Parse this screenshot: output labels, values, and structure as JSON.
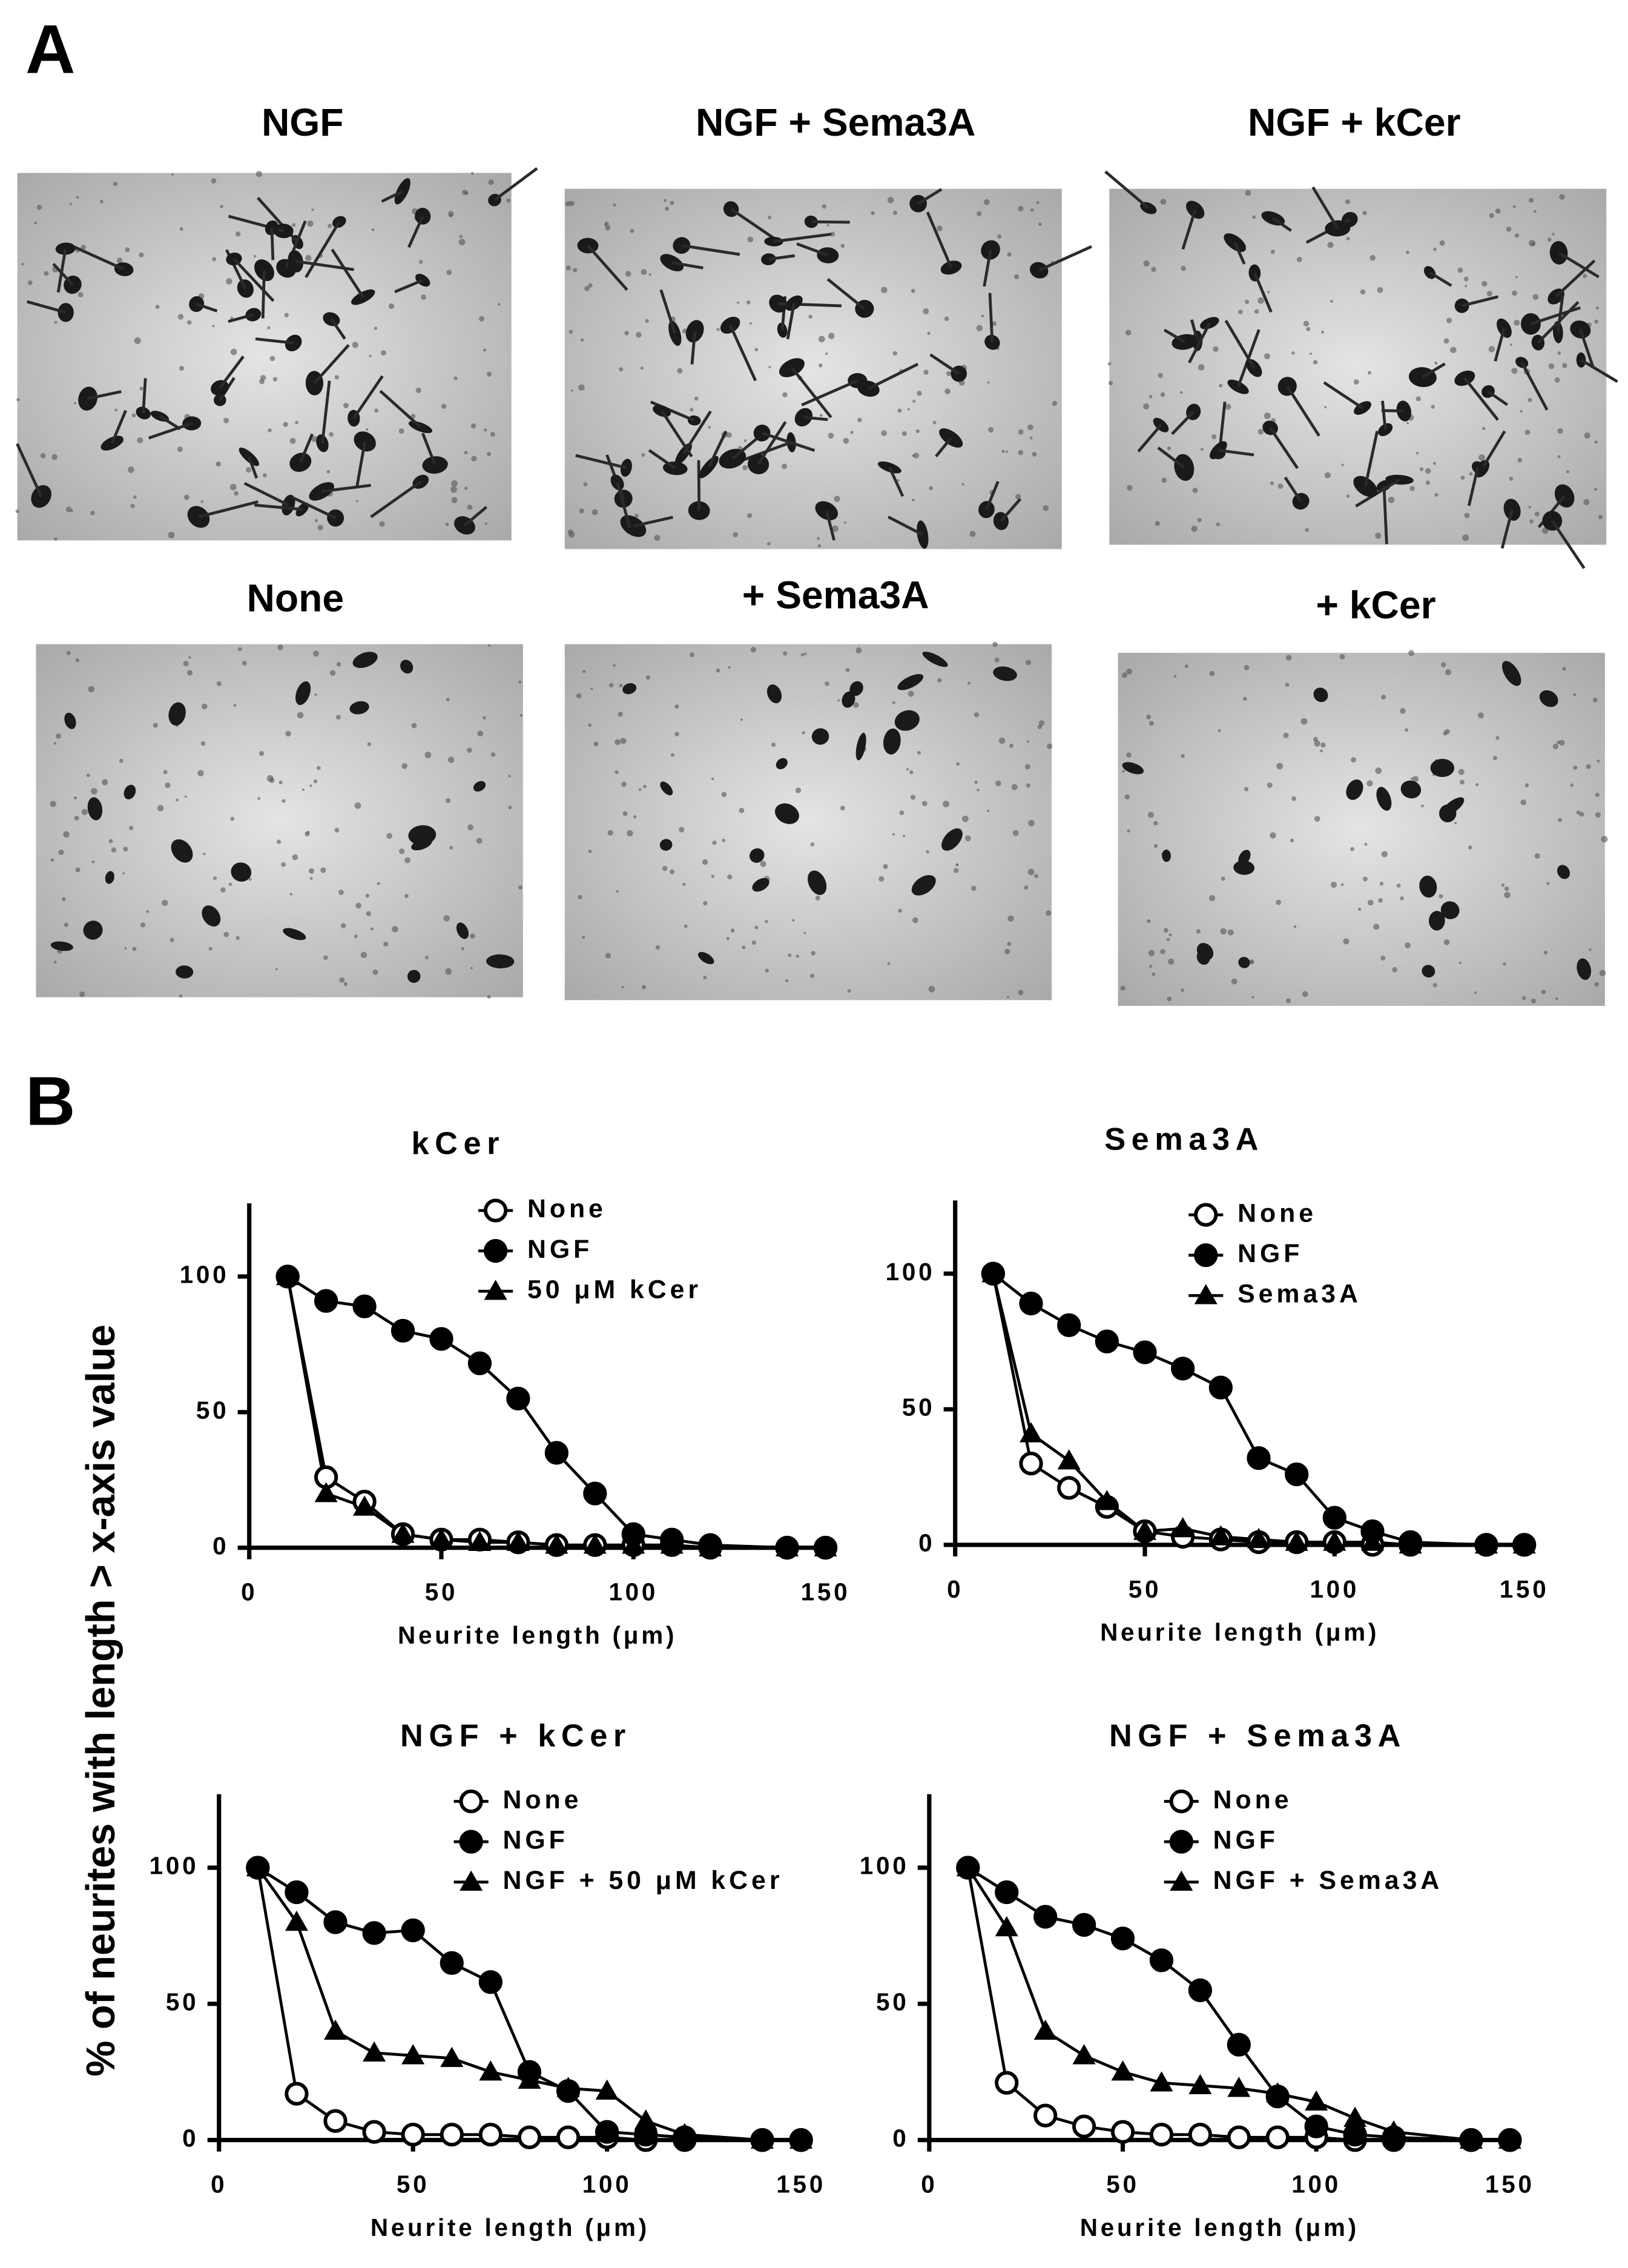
{
  "panel_a": {
    "label": "A",
    "images": [
      {
        "title": "NGF"
      },
      {
        "title": "NGF + Sema3A"
      },
      {
        "title": "NGF + kCer"
      },
      {
        "title": "None"
      },
      {
        "title": "+ Sema3A"
      },
      {
        "title": "+ kCer"
      }
    ]
  },
  "panel_b": {
    "label": "B",
    "y_label": "% of neurites with length > x-axis value"
  },
  "chart_data": [
    {
      "type": "line",
      "title": "kCer",
      "x_label": "Neurite length (μm)",
      "x": [
        10,
        20,
        30,
        40,
        50,
        60,
        70,
        80,
        90,
        100,
        110,
        120,
        140,
        150
      ],
      "xlim": [
        0,
        150
      ],
      "xticks": [
        0,
        50,
        100,
        150
      ],
      "ylim": [
        0,
        127
      ],
      "yticks": [
        0,
        50,
        100
      ],
      "legend": "upper right",
      "series": [
        {
          "name": "None",
          "color": "#000000",
          "marker": "open-circle",
          "values": [
            100,
            26,
            17,
            5,
            3,
            3,
            2,
            1,
            1,
            1,
            1,
            0,
            0,
            0
          ]
        },
        {
          "name": "NGF",
          "color": "#000000",
          "marker": "circle",
          "values": [
            100,
            91,
            89,
            80,
            77,
            68,
            55,
            35,
            20,
            5,
            3,
            1,
            0,
            0
          ]
        },
        {
          "name": "50 μM kCer",
          "color": "#000000",
          "marker": "triangle",
          "values": [
            100,
            20,
            15,
            5,
            3,
            2,
            2,
            1,
            1,
            1,
            1,
            0,
            0,
            0
          ]
        }
      ]
    },
    {
      "type": "line",
      "title": "Sema3A",
      "x_label": "Neurite length (μm)",
      "x": [
        10,
        20,
        30,
        40,
        50,
        60,
        70,
        80,
        90,
        100,
        110,
        120,
        140,
        150
      ],
      "xlim": [
        0,
        150
      ],
      "xticks": [
        0,
        50,
        100,
        150
      ],
      "ylim": [
        0,
        127
      ],
      "yticks": [
        0,
        50,
        100
      ],
      "legend": "upper right",
      "series": [
        {
          "name": "None",
          "color": "#000000",
          "marker": "open-circle",
          "values": [
            100,
            30,
            21,
            14,
            5,
            3,
            2,
            1,
            1,
            1,
            0,
            0,
            0,
            0
          ]
        },
        {
          "name": "NGF",
          "color": "#000000",
          "marker": "circle",
          "values": [
            100,
            89,
            81,
            75,
            71,
            65,
            58,
            32,
            26,
            10,
            5,
            1,
            0,
            0
          ]
        },
        {
          "name": "Sema3A",
          "color": "#000000",
          "marker": "triangle",
          "values": [
            100,
            41,
            31,
            16,
            5,
            6,
            3,
            2,
            1,
            1,
            1,
            0,
            0,
            0
          ]
        }
      ]
    },
    {
      "type": "line",
      "title": "NGF + kCer",
      "x_label": "Neurite length (μm)",
      "x": [
        10,
        20,
        30,
        40,
        50,
        60,
        70,
        80,
        90,
        100,
        110,
        120,
        140,
        150
      ],
      "xlim": [
        0,
        150
      ],
      "xticks": [
        0,
        50,
        100,
        150
      ],
      "ylim": [
        0,
        127
      ],
      "yticks": [
        0,
        50,
        100
      ],
      "legend": "upper right",
      "series": [
        {
          "name": "None",
          "color": "#000000",
          "marker": "open-circle",
          "values": [
            100,
            17,
            7,
            3,
            2,
            2,
            2,
            1,
            1,
            1,
            0,
            0,
            0,
            0
          ]
        },
        {
          "name": "NGF",
          "color": "#000000",
          "marker": "circle",
          "values": [
            100,
            91,
            80,
            76,
            77,
            65,
            58,
            25,
            18,
            3,
            2,
            1,
            0,
            0
          ]
        },
        {
          "name": "NGF + 50 μM kCer",
          "color": "#000000",
          "marker": "triangle",
          "values": [
            100,
            80,
            40,
            32,
            31,
            30,
            25,
            22,
            19,
            18,
            7,
            2,
            0,
            0
          ]
        }
      ]
    },
    {
      "type": "line",
      "title": "NGF + Sema3A",
      "x_label": "Neurite length (μm)",
      "x": [
        10,
        20,
        30,
        40,
        50,
        60,
        70,
        80,
        90,
        100,
        110,
        120,
        140,
        150
      ],
      "xlim": [
        0,
        150
      ],
      "xticks": [
        0,
        50,
        100,
        150
      ],
      "ylim": [
        0,
        127
      ],
      "yticks": [
        0,
        50,
        100
      ],
      "legend": "upper right",
      "series": [
        {
          "name": "None",
          "color": "#000000",
          "marker": "open-circle",
          "values": [
            100,
            21,
            9,
            5,
            3,
            2,
            2,
            1,
            1,
            1,
            0,
            0,
            0,
            0
          ]
        },
        {
          "name": "NGF",
          "color": "#000000",
          "marker": "circle",
          "values": [
            100,
            91,
            82,
            79,
            74,
            66,
            55,
            35,
            16,
            5,
            2,
            1,
            0,
            0
          ]
        },
        {
          "name": "NGF + Sema3A",
          "color": "#000000",
          "marker": "triangle",
          "values": [
            100,
            78,
            40,
            31,
            25,
            21,
            20,
            19,
            17,
            14,
            8,
            3,
            0,
            0
          ]
        }
      ]
    }
  ]
}
